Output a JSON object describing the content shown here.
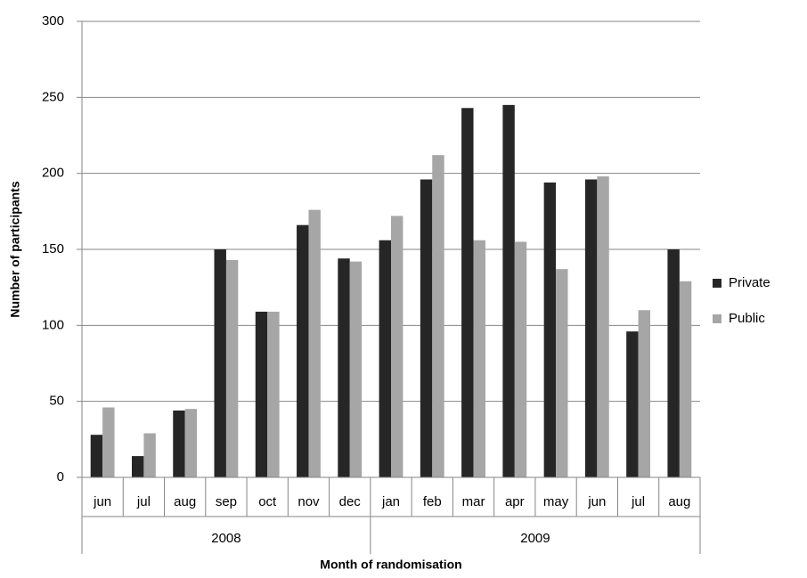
{
  "chart_data": {
    "type": "bar",
    "x_label": "Month of randomisation",
    "y_label": "Number of participants",
    "category_groups": [
      {
        "name": "2008",
        "categories": [
          "jun",
          "jul",
          "aug",
          "sep",
          "oct",
          "nov",
          "dec"
        ]
      },
      {
        "name": "2009",
        "categories": [
          "jan",
          "feb",
          "mar",
          "apr",
          "may",
          "jun",
          "jul",
          "aug"
        ]
      }
    ],
    "series": [
      {
        "name": "Private",
        "color": "#262626",
        "values": [
          28,
          14,
          44,
          150,
          109,
          166,
          144,
          156,
          196,
          243,
          245,
          194,
          196,
          96,
          150
        ]
      },
      {
        "name": "Public",
        "color": "#a6a6a6",
        "values": [
          46,
          29,
          45,
          143,
          109,
          176,
          142,
          172,
          212,
          156,
          155,
          137,
          198,
          110,
          129
        ]
      }
    ],
    "ylim": [
      0,
      300
    ],
    "yticks": [
      0,
      50,
      100,
      150,
      200,
      250,
      300
    ],
    "grid": true,
    "legend": "right"
  }
}
